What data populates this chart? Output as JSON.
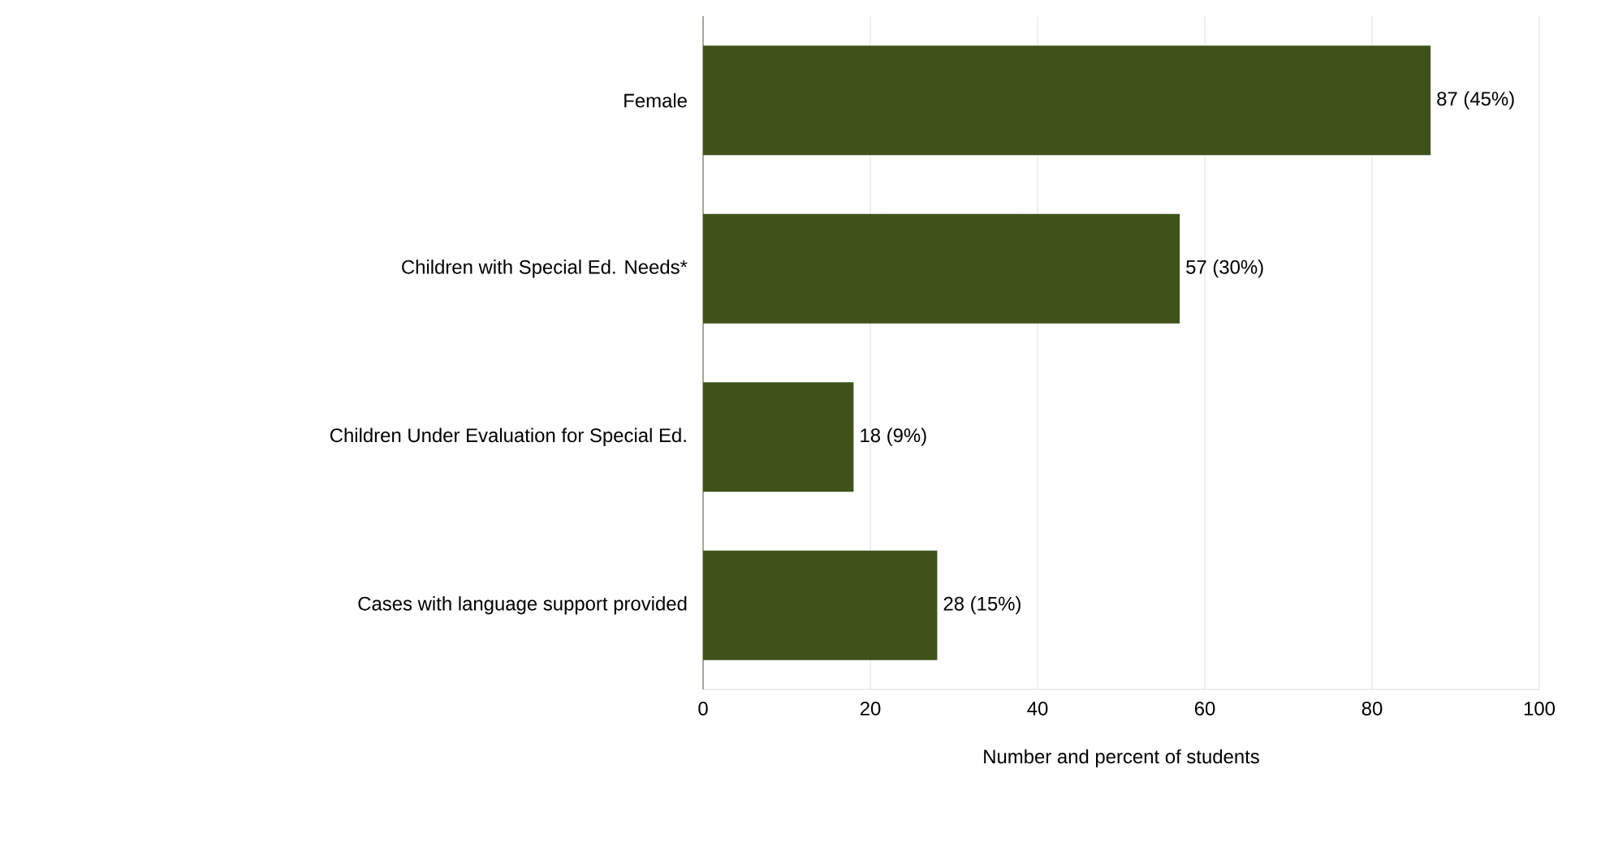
{
  "chart_data": {
    "type": "bar",
    "orientation": "horizontal",
    "categories": [
      "Female",
      "Children with Special Ed. Needs*",
      "Children Under Evaluation for Special Ed.",
      "Cases with language support provided"
    ],
    "values": [
      87,
      57,
      18,
      28
    ],
    "value_labels": [
      "87 (45%)",
      "57 (30%)",
      "18 (9%)",
      "28 (15%)"
    ],
    "color": "#3f521a",
    "xlabel": "Number and percent of students",
    "xlim": [
      0,
      100
    ],
    "xticks": [
      0,
      20,
      40,
      60,
      80,
      100
    ],
    "grid": "x"
  }
}
